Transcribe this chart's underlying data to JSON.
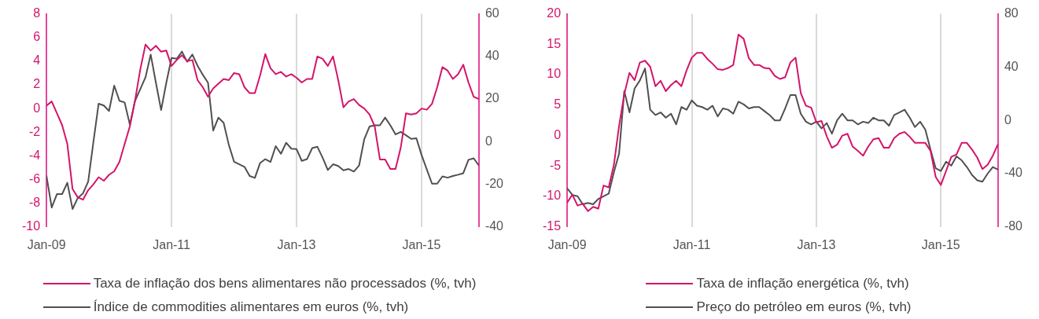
{
  "chart_data": [
    {
      "type": "line",
      "x": [
        "2009-01",
        "2009-02",
        "2009-03",
        "2009-04",
        "2009-05",
        "2009-06",
        "2009-07",
        "2009-08",
        "2009-09",
        "2009-10",
        "2009-11",
        "2009-12",
        "2010-01",
        "2010-02",
        "2010-03",
        "2010-04",
        "2010-05",
        "2010-06",
        "2010-07",
        "2010-08",
        "2010-09",
        "2010-10",
        "2010-11",
        "2010-12",
        "2011-01",
        "2011-02",
        "2011-03",
        "2011-04",
        "2011-05",
        "2011-06",
        "2011-07",
        "2011-08",
        "2011-09",
        "2011-10",
        "2011-11",
        "2011-12",
        "2012-01",
        "2012-02",
        "2012-03",
        "2012-04",
        "2012-05",
        "2012-06",
        "2012-07",
        "2012-08",
        "2012-09",
        "2012-10",
        "2012-11",
        "2012-12",
        "2013-01",
        "2013-02",
        "2013-03",
        "2013-04",
        "2013-05",
        "2013-06",
        "2013-07",
        "2013-08",
        "2013-09",
        "2013-10",
        "2013-11",
        "2013-12",
        "2014-01",
        "2014-02",
        "2014-03",
        "2014-04",
        "2014-05",
        "2014-06",
        "2014-07",
        "2014-08",
        "2014-09",
        "2014-10",
        "2014-11",
        "2014-12",
        "2015-01",
        "2015-02",
        "2015-03",
        "2015-04",
        "2015-05",
        "2015-06",
        "2015-07",
        "2015-08",
        "2015-09",
        "2015-10",
        "2015-11",
        "2015-12"
      ],
      "xlim": [
        "2009-01",
        "2015-12"
      ],
      "xticks": [
        {
          "value": "2009-01",
          "label": "Jan-09"
        },
        {
          "value": "2011-01",
          "label": "Jan-11"
        },
        {
          "value": "2013-01",
          "label": "Jan-13"
        },
        {
          "value": "2015-01",
          "label": "Jan-15"
        }
      ],
      "ylim": [
        -10,
        8
      ],
      "yticks": [
        -10,
        -8,
        -6,
        -4,
        -2,
        0,
        2,
        4,
        6,
        8
      ],
      "y2lim": [
        -40,
        60
      ],
      "y2ticks": [
        -40,
        -20,
        0,
        20,
        40,
        60
      ],
      "grid": "x",
      "legend": "bottom",
      "marker": "none",
      "series": [
        {
          "name": "Taxa de inflação dos bens alimentares não processados (%, tvh)",
          "color": "#d4146a",
          "values": [
            0.25,
            0.6,
            -0.4,
            -1.4,
            -3.0,
            -6.8,
            -7.5,
            -7.7,
            -6.9,
            -6.4,
            -5.8,
            -6.1,
            -5.6,
            -5.3,
            -4.5,
            -3.0,
            -1.5,
            0.7,
            3.3,
            5.4,
            4.9,
            5.3,
            4.8,
            4.9,
            3.6,
            4.1,
            4.5,
            4.0,
            4.1,
            2.4,
            1.8,
            1.0,
            1.7,
            2.1,
            2.5,
            2.4,
            3.0,
            2.9,
            1.8,
            1.3,
            1.3,
            2.8,
            4.6,
            3.4,
            2.9,
            3.1,
            2.7,
            2.9,
            2.6,
            2.2,
            2.5,
            2.5,
            4.4,
            4.2,
            3.6,
            4.4,
            2.4,
            0.1,
            0.6,
            0.8,
            0.3,
            0.0,
            -0.5,
            -1.5,
            -4.3,
            -4.3,
            -5.1,
            -5.1,
            -3.3,
            -0.4,
            -0.5,
            -0.4,
            0.0,
            -0.1,
            0.4,
            1.8,
            3.5,
            3.2,
            2.5,
            2.9,
            3.7,
            2.2,
            1.0,
            0.8
          ]
        },
        {
          "name": "Índice de commodities alimentares em euros (%, tvh)",
          "color": "#505050",
          "axis": "y2",
          "values": [
            -16.1,
            -30.9,
            -24.6,
            -24.6,
            -19.3,
            -31.6,
            -26.4,
            -24.3,
            -18.7,
            -0.2,
            17.8,
            17.0,
            14.4,
            26.3,
            19.2,
            18.4,
            8.0,
            19.2,
            24.7,
            30.2,
            40.9,
            27.7,
            14.8,
            27.7,
            39.3,
            38.9,
            42.3,
            37.5,
            40.9,
            35.6,
            31.4,
            27.7,
            5.2,
            11.3,
            8.9,
            -1.5,
            -9.4,
            -10.6,
            -11.8,
            -16.1,
            -17.0,
            -10.0,
            -8.2,
            -9.5,
            -2.1,
            -5.7,
            -0.5,
            -3.3,
            -3.5,
            -9.0,
            -8.2,
            -3.0,
            -2.4,
            -7.5,
            -13.3,
            -10.6,
            -11.4,
            -13.4,
            -12.8,
            -14.0,
            -11.2,
            1.2,
            7.1,
            7.7,
            7.7,
            11.3,
            7.7,
            3.4,
            4.6,
            3.0,
            1.3,
            1.6,
            -6.3,
            -13.0,
            -19.7,
            -19.7,
            -16.3,
            -16.9,
            -16.1,
            -15.5,
            -14.8,
            -8.5,
            -7.8,
            -11.2
          ]
        }
      ]
    },
    {
      "type": "line",
      "x": [
        "2009-01",
        "2009-02",
        "2009-03",
        "2009-04",
        "2009-05",
        "2009-06",
        "2009-07",
        "2009-08",
        "2009-09",
        "2009-10",
        "2009-11",
        "2009-12",
        "2010-01",
        "2010-02",
        "2010-03",
        "2010-04",
        "2010-05",
        "2010-06",
        "2010-07",
        "2010-08",
        "2010-09",
        "2010-10",
        "2010-11",
        "2010-12",
        "2011-01",
        "2011-02",
        "2011-03",
        "2011-04",
        "2011-05",
        "2011-06",
        "2011-07",
        "2011-08",
        "2011-09",
        "2011-10",
        "2011-11",
        "2011-12",
        "2012-01",
        "2012-02",
        "2012-03",
        "2012-04",
        "2012-05",
        "2012-06",
        "2012-07",
        "2012-08",
        "2012-09",
        "2012-10",
        "2012-11",
        "2012-12",
        "2013-01",
        "2013-02",
        "2013-03",
        "2013-04",
        "2013-05",
        "2013-06",
        "2013-07",
        "2013-08",
        "2013-09",
        "2013-10",
        "2013-11",
        "2013-12",
        "2014-01",
        "2014-02",
        "2014-03",
        "2014-04",
        "2014-05",
        "2014-06",
        "2014-07",
        "2014-08",
        "2014-09",
        "2014-10",
        "2014-11",
        "2014-12",
        "2015-01",
        "2015-02",
        "2015-03",
        "2015-04",
        "2015-05",
        "2015-06",
        "2015-07",
        "2015-08",
        "2015-09",
        "2015-10",
        "2015-11",
        "2015-12"
      ],
      "xlim": [
        "2009-01",
        "2015-12"
      ],
      "xticks": [
        {
          "value": "2009-01",
          "label": "Jan-09"
        },
        {
          "value": "2011-01",
          "label": "Jan-11"
        },
        {
          "value": "2013-01",
          "label": "Jan-13"
        },
        {
          "value": "2015-01",
          "label": "Jan-15"
        }
      ],
      "ylim": [
        -15,
        20
      ],
      "yticks": [
        -15,
        -10,
        -5,
        0,
        5,
        10,
        15,
        20
      ],
      "y2lim": [
        -80,
        80
      ],
      "y2ticks": [
        -80,
        -40,
        0,
        40,
        80
      ],
      "grid": "x",
      "legend": "bottom",
      "marker": "none",
      "series": [
        {
          "name": "Taxa de inflação energética (%, tvh)",
          "color": "#d4146a",
          "values": [
            -11.0,
            -9.7,
            -11.5,
            -11.2,
            -12.4,
            -11.7,
            -12.0,
            -8.2,
            -8.5,
            -4.8,
            1.6,
            6.8,
            10.3,
            9.1,
            12.0,
            12.3,
            11.3,
            8.1,
            9.0,
            7.3,
            8.3,
            9.0,
            8.1,
            10.7,
            12.8,
            13.6,
            13.6,
            12.6,
            11.8,
            10.9,
            10.8,
            11.1,
            11.6,
            16.6,
            15.9,
            12.7,
            11.6,
            11.6,
            11.1,
            11.0,
            9.8,
            9.3,
            9.6,
            12.0,
            12.8,
            7.0,
            4.9,
            4.6,
            2.2,
            2.4,
            -0.1,
            -2.0,
            -1.5,
            0.0,
            0.3,
            -1.8,
            -2.5,
            -3.3,
            -1.8,
            -0.6,
            -0.4,
            -2.0,
            -2.0,
            -0.4,
            0.3,
            0.6,
            -0.2,
            -1.2,
            -1.2,
            -1.2,
            -2.5,
            -6.8,
            -8.1,
            -5.8,
            -3.5,
            -3.1,
            -1.2,
            -1.2,
            -2.3,
            -3.6,
            -5.5,
            -4.8,
            -3.3,
            -1.4
          ]
        },
        {
          "name": "Preço do petróleo em euros (%, tvh)",
          "color": "#505050",
          "axis": "y2",
          "values": [
            -51,
            -56,
            -57,
            -63,
            -62,
            -63,
            -59,
            -57,
            -55,
            -39,
            -25,
            22,
            6,
            24,
            30,
            39,
            8,
            4,
            6,
            2,
            5,
            -3,
            10,
            8,
            15,
            11,
            10,
            8,
            11,
            3,
            9,
            8,
            5,
            14,
            12,
            9,
            10,
            10,
            7,
            4,
            0,
            0,
            9,
            19,
            19,
            5,
            -1,
            -3,
            -1,
            -6,
            -2,
            -10,
            0,
            5,
            0,
            0,
            -3,
            -1,
            -2,
            2,
            0,
            0,
            -4,
            4,
            6,
            8,
            2,
            -5,
            -1,
            -7,
            -22,
            -36,
            -38,
            -31,
            -34,
            -27,
            -30,
            -35,
            -41,
            -45,
            -46,
            -40,
            -35,
            -37
          ]
        }
      ]
    }
  ]
}
